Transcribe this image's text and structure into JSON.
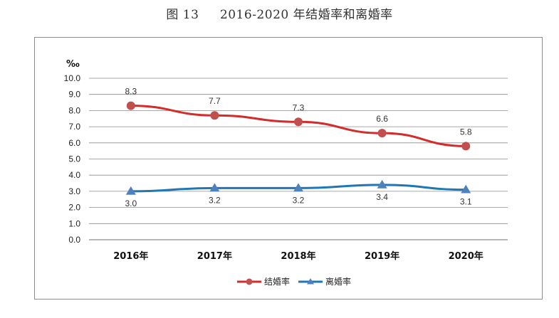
{
  "figure": {
    "title": "图 13     2016-2020 年结婚率和离婚率"
  },
  "chart_data": {
    "type": "line",
    "title": "",
    "ylabel": "‰",
    "xlabel": "",
    "categories": [
      "2016年",
      "2017年",
      "2018年",
      "2019年",
      "2020年"
    ],
    "ylim": [
      0,
      10
    ],
    "yticks": [
      "0.0",
      "1.0",
      "2.0",
      "3.0",
      "4.0",
      "5.0",
      "6.0",
      "7.0",
      "8.0",
      "9.0",
      "10.0"
    ],
    "grid": true,
    "legend_position": "bottom",
    "series": [
      {
        "name": "结婚率",
        "values": [
          8.3,
          7.7,
          7.3,
          6.6,
          5.8
        ],
        "labels": [
          "8.3",
          "7.7",
          "7.3",
          "6.6",
          "5.8"
        ],
        "color": "#d42b2b",
        "marker_color": "#c0504d",
        "marker": "circle"
      },
      {
        "name": "离婚率",
        "values": [
          3.0,
          3.2,
          3.2,
          3.4,
          3.1
        ],
        "labels": [
          "3.0",
          "3.2",
          "3.2",
          "3.4",
          "3.1"
        ],
        "color": "#1f78b4",
        "marker_color": "#4f81bd",
        "marker": "triangle"
      }
    ]
  }
}
